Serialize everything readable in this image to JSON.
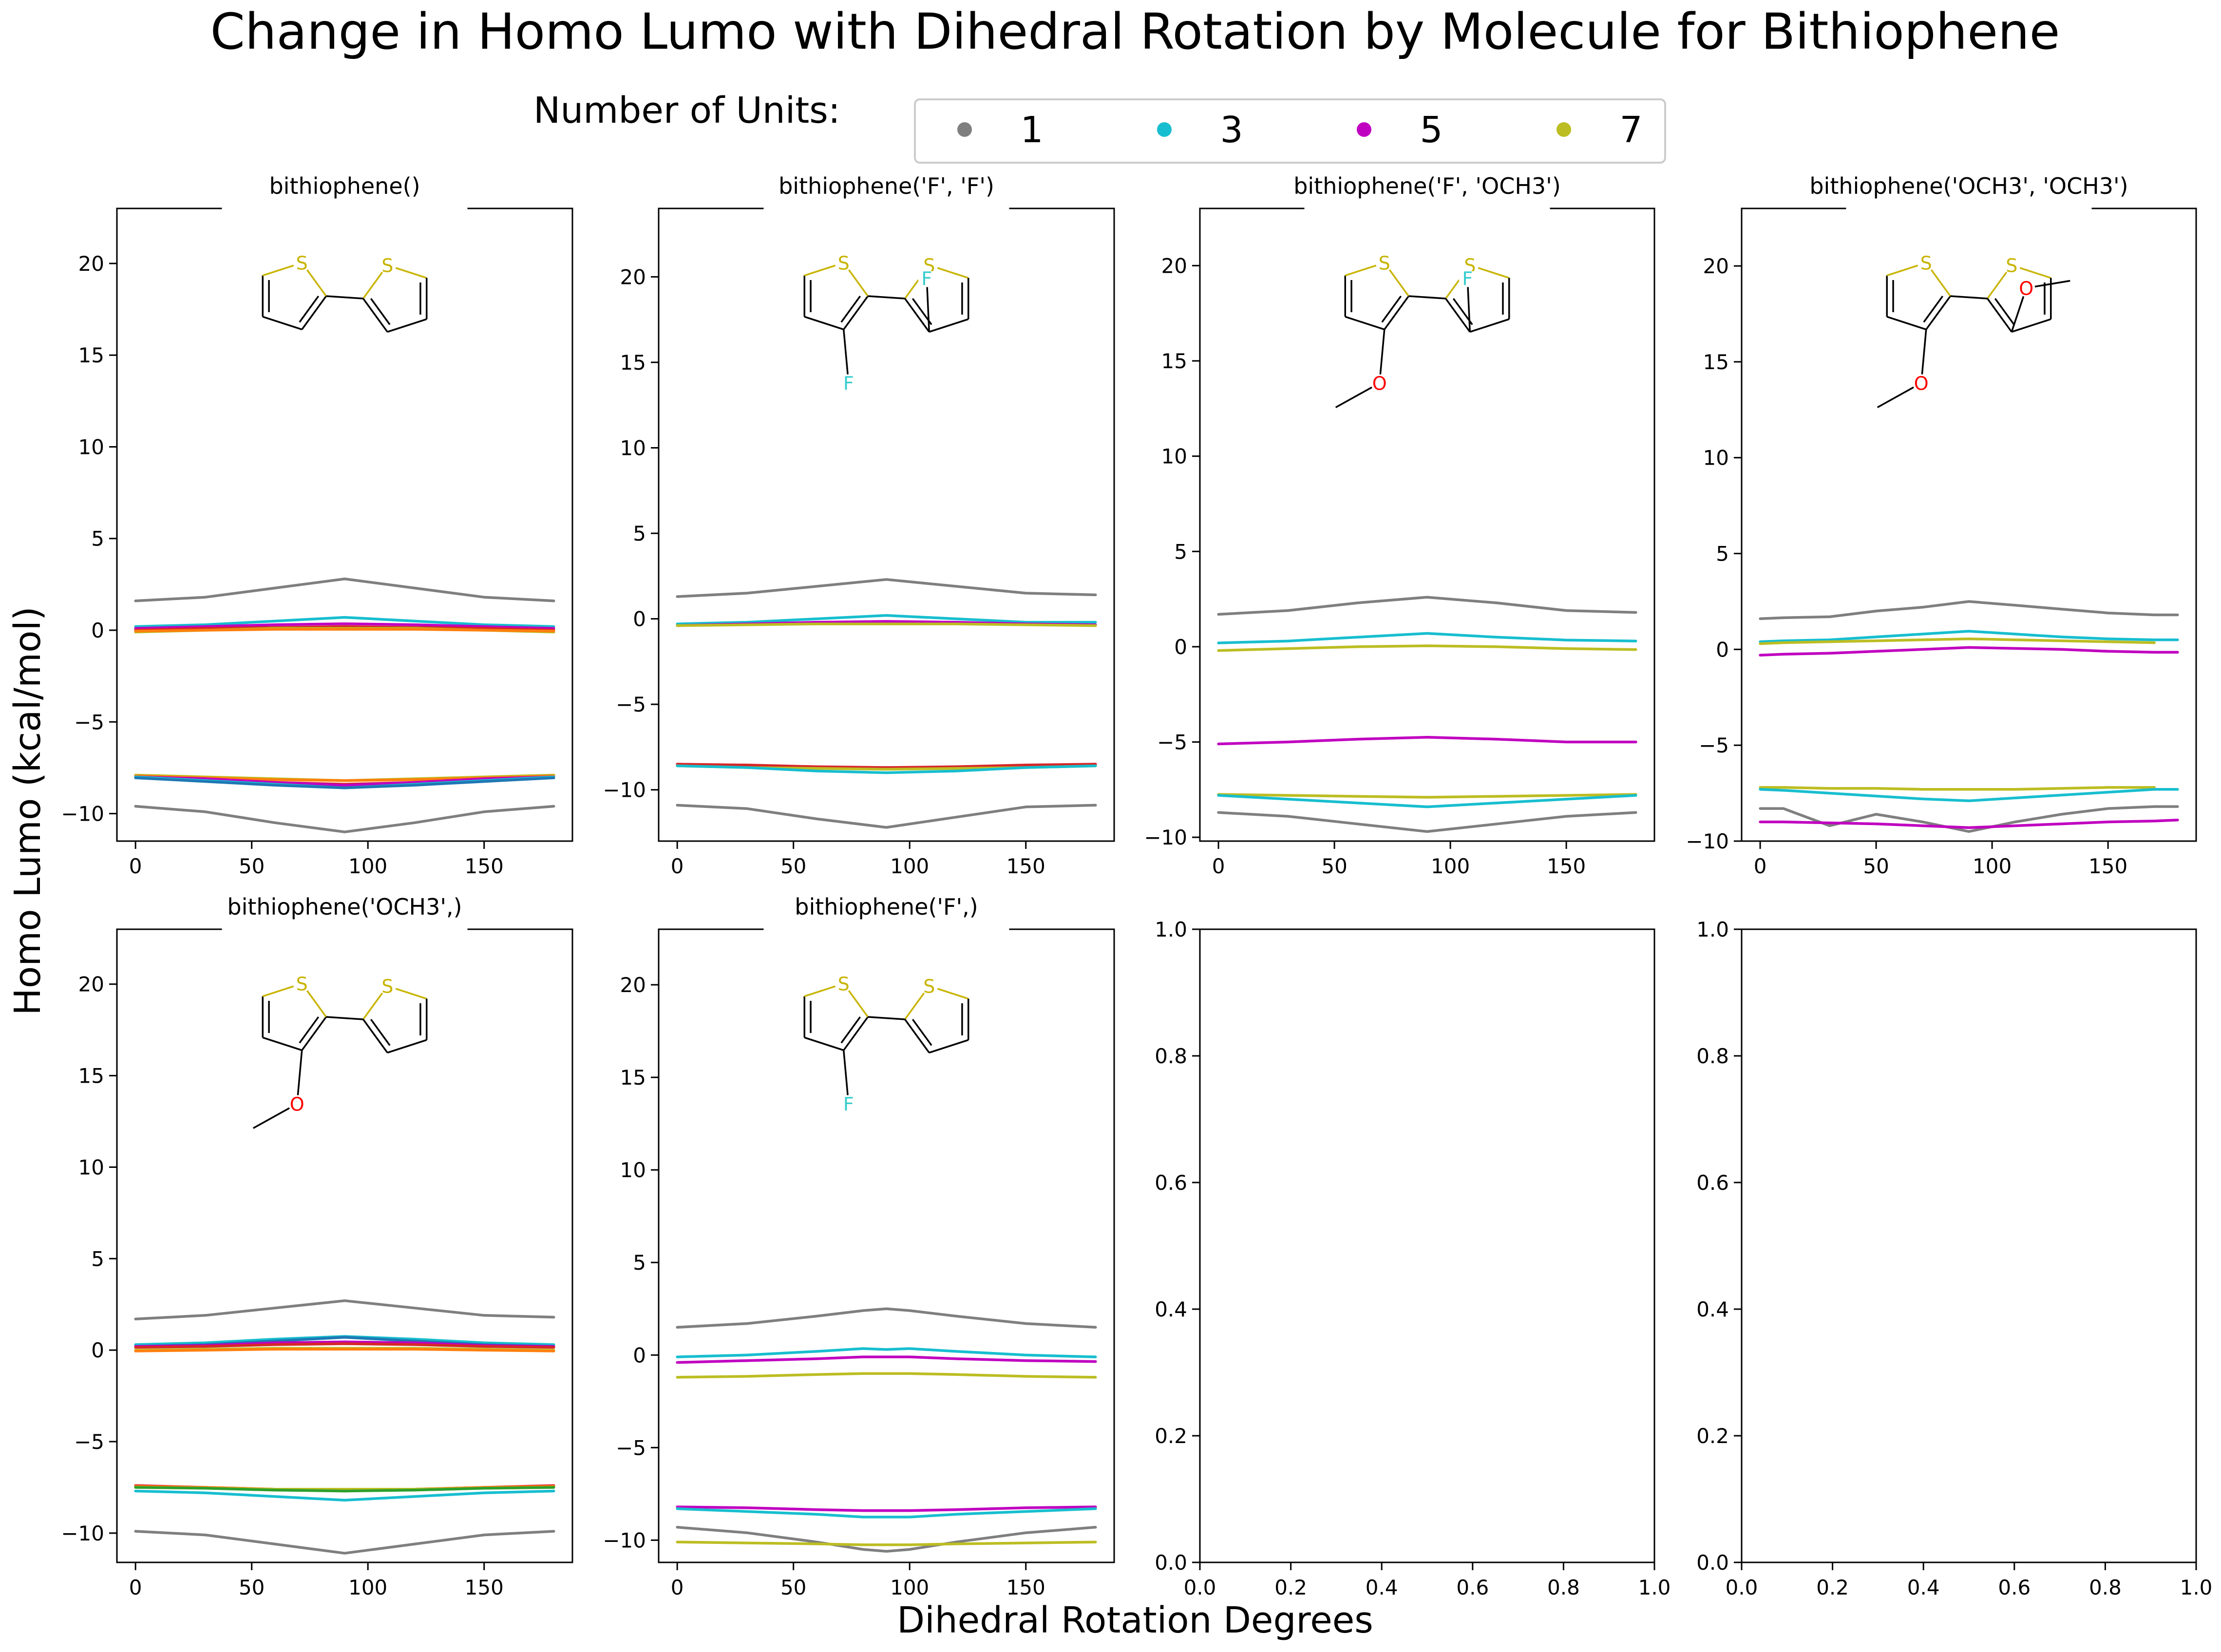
{
  "figure": {
    "title": "Change in Homo Lumo with Dihedral Rotation by Molecule for Bithiophene",
    "xlabel": "Dihedral Rotation Degrees",
    "ylabel": "Homo Lumo (kcal/mol)"
  },
  "legend": {
    "title": "Number of Units:",
    "entries": [
      {
        "label": "1",
        "color": "#7f7f7f"
      },
      {
        "label": "3",
        "color": "#17becf"
      },
      {
        "label": "5",
        "color": "#c000c0"
      },
      {
        "label": "7",
        "color": "#bcbd22"
      }
    ]
  },
  "colors": {
    "gray": "#7f7f7f",
    "cyan": "#17becf",
    "magenta": "#c000c0",
    "olive": "#bcbd22",
    "red": "#d62728",
    "orange": "#ff7f0e",
    "blue": "#1f77b4",
    "green": "#2ca02c",
    "sulfur": "#c8b400",
    "oxygen": "#ff0000",
    "fluorine": "#33cccc"
  },
  "chart_data": [
    {
      "type": "line",
      "title": "bithiophene()",
      "molecule": "base",
      "x": [
        0,
        30,
        60,
        90,
        120,
        150,
        180
      ],
      "xlim": [
        -8,
        188
      ],
      "ylim": [
        -11.5,
        23
      ],
      "xticks": [
        "0",
        "50",
        "100",
        "150"
      ],
      "yticks": [
        "−10",
        "−5",
        "0",
        "5",
        "10",
        "15",
        "20"
      ],
      "series": [
        {
          "color": "gray",
          "y": [
            1.6,
            1.8,
            2.3,
            2.8,
            2.3,
            1.8,
            1.6
          ]
        },
        {
          "color": "cyan",
          "y": [
            0.2,
            0.3,
            0.5,
            0.7,
            0.5,
            0.3,
            0.2
          ]
        },
        {
          "color": "magenta",
          "y": [
            0.1,
            0.2,
            0.3,
            0.35,
            0.3,
            0.2,
            0.1
          ]
        },
        {
          "color": "red",
          "y": [
            0.0,
            0.1,
            0.15,
            0.2,
            0.15,
            0.1,
            0.0
          ]
        },
        {
          "color": "olive",
          "y": [
            -0.1,
            0.0,
            0.1,
            0.1,
            0.1,
            0.0,
            -0.1
          ]
        },
        {
          "color": "orange",
          "y": [
            -0.05,
            0.0,
            0.05,
            0.05,
            0.05,
            0.0,
            -0.05
          ]
        },
        {
          "color": "olive",
          "y": [
            -7.9,
            -8.0,
            -8.1,
            -8.2,
            -8.1,
            -8.0,
            -7.9
          ]
        },
        {
          "color": "orange",
          "y": [
            -7.95,
            -8.05,
            -8.15,
            -8.2,
            -8.15,
            -8.05,
            -7.95
          ]
        },
        {
          "color": "red",
          "y": [
            -8.0,
            -8.1,
            -8.3,
            -8.4,
            -8.3,
            -8.1,
            -8.0
          ]
        },
        {
          "color": "magenta",
          "y": [
            -8.0,
            -8.1,
            -8.3,
            -8.45,
            -8.3,
            -8.1,
            -8.0
          ]
        },
        {
          "color": "cyan",
          "y": [
            -8.0,
            -8.2,
            -8.4,
            -8.6,
            -8.4,
            -8.2,
            -8.0
          ]
        },
        {
          "color": "blue",
          "y": [
            -8.05,
            -8.25,
            -8.45,
            -8.6,
            -8.45,
            -8.25,
            -8.05
          ]
        },
        {
          "color": "gray",
          "y": [
            -9.6,
            -9.9,
            -10.5,
            -11.0,
            -10.5,
            -9.9,
            -9.6
          ]
        }
      ]
    },
    {
      "type": "line",
      "title": "bithiophene('F', 'F')",
      "molecule": "FF",
      "x": [
        0,
        30,
        60,
        90,
        120,
        150,
        180
      ],
      "xlim": [
        -8,
        188
      ],
      "ylim": [
        -13,
        24
      ],
      "xticks": [
        "0",
        "50",
        "100",
        "150"
      ],
      "yticks": [
        "−10",
        "−5",
        "0",
        "5",
        "10",
        "15",
        "20"
      ],
      "series": [
        {
          "color": "gray",
          "y": [
            1.3,
            1.5,
            1.9,
            2.3,
            1.9,
            1.5,
            1.4
          ]
        },
        {
          "color": "cyan",
          "y": [
            -0.3,
            -0.2,
            0.0,
            0.2,
            0.0,
            -0.2,
            -0.2
          ]
        },
        {
          "color": "magenta",
          "y": [
            -0.4,
            -0.3,
            -0.2,
            -0.15,
            -0.2,
            -0.3,
            -0.35
          ]
        },
        {
          "color": "olive",
          "y": [
            -0.4,
            -0.35,
            -0.3,
            -0.3,
            -0.3,
            -0.35,
            -0.4
          ]
        },
        {
          "color": "magenta",
          "y": [
            -8.5,
            -8.6,
            -8.7,
            -8.7,
            -8.7,
            -8.6,
            -8.5
          ]
        },
        {
          "color": "red",
          "y": [
            -8.5,
            -8.55,
            -8.65,
            -8.7,
            -8.65,
            -8.55,
            -8.5
          ]
        },
        {
          "color": "olive",
          "y": [
            -8.6,
            -8.7,
            -8.75,
            -8.8,
            -8.75,
            -8.7,
            -8.6
          ]
        },
        {
          "color": "cyan",
          "y": [
            -8.6,
            -8.7,
            -8.9,
            -9.0,
            -8.9,
            -8.7,
            -8.6
          ]
        },
        {
          "color": "gray",
          "y": [
            -10.9,
            -11.1,
            -11.7,
            -12.2,
            -11.6,
            -11.0,
            -10.9
          ]
        }
      ]
    },
    {
      "type": "line",
      "title": "bithiophene('F', 'OCH3')",
      "molecule": "FOCH3",
      "x": [
        0,
        30,
        60,
        90,
        120,
        150,
        180
      ],
      "xlim": [
        -8,
        188
      ],
      "ylim": [
        -10.2,
        23
      ],
      "xticks": [
        "0",
        "50",
        "100",
        "150"
      ],
      "yticks": [
        "−10",
        "−5",
        "0",
        "5",
        "10",
        "15",
        "20"
      ],
      "series": [
        {
          "color": "gray",
          "y": [
            1.7,
            1.9,
            2.3,
            2.6,
            2.3,
            1.9,
            1.8
          ]
        },
        {
          "color": "cyan",
          "y": [
            0.2,
            0.3,
            0.5,
            0.7,
            0.5,
            0.35,
            0.3
          ]
        },
        {
          "color": "olive",
          "y": [
            -0.2,
            -0.1,
            0.0,
            0.05,
            0.0,
            -0.1,
            -0.15
          ]
        },
        {
          "color": "magenta",
          "y": [
            -5.1,
            -5.0,
            -4.85,
            -4.75,
            -4.85,
            -5.0,
            -5.0
          ]
        },
        {
          "color": "olive",
          "y": [
            -7.75,
            -7.8,
            -7.85,
            -7.9,
            -7.85,
            -7.8,
            -7.75
          ]
        },
        {
          "color": "cyan",
          "y": [
            -7.8,
            -8.0,
            -8.2,
            -8.4,
            -8.2,
            -8.0,
            -7.8
          ]
        },
        {
          "color": "gray",
          "y": [
            -8.7,
            -8.9,
            -9.3,
            -9.7,
            -9.3,
            -8.9,
            -8.7
          ]
        }
      ]
    },
    {
      "type": "line",
      "title": "bithiophene('OCH3', 'OCH3')",
      "molecule": "OCH3OCH3",
      "x": [
        0,
        10,
        30,
        50,
        70,
        90,
        110,
        130,
        150,
        170,
        180
      ],
      "xlim": [
        -8,
        188
      ],
      "ylim": [
        -10,
        23
      ],
      "xticks": [
        "0",
        "50",
        "100",
        "150"
      ],
      "yticks": [
        "−10",
        "−5",
        "0",
        "5",
        "10",
        "15",
        "20"
      ],
      "series": [
        {
          "color": "gray",
          "y": [
            1.6,
            1.65,
            1.7,
            2.0,
            2.2,
            2.5,
            2.3,
            2.1,
            1.9,
            1.8,
            1.8
          ]
        },
        {
          "color": "cyan",
          "y": [
            0.4,
            0.45,
            0.5,
            0.65,
            0.8,
            0.95,
            0.8,
            0.65,
            0.55,
            0.5,
            0.5
          ]
        },
        {
          "color": "olive",
          "y": [
            0.3,
            0.35,
            0.4,
            0.45,
            0.5,
            0.55,
            0.5,
            0.45,
            0.4,
            0.35,
            null
          ]
        },
        {
          "color": "magenta",
          "y": [
            -0.3,
            -0.25,
            -0.2,
            -0.1,
            0.0,
            0.1,
            0.05,
            0.0,
            -0.1,
            -0.15,
            -0.15
          ]
        },
        {
          "color": "olive",
          "y": [
            -7.2,
            -7.2,
            -7.25,
            -7.25,
            -7.3,
            -7.3,
            -7.3,
            -7.25,
            -7.2,
            -7.2,
            null
          ]
        },
        {
          "color": "cyan",
          "y": [
            -7.3,
            -7.35,
            -7.5,
            -7.65,
            -7.8,
            -7.9,
            -7.75,
            -7.6,
            -7.45,
            -7.3,
            -7.3
          ]
        },
        {
          "color": "gray",
          "y": [
            -8.3,
            -8.3,
            -9.2,
            -8.6,
            -9.0,
            -9.5,
            -9.0,
            -8.6,
            -8.3,
            -8.2,
            -8.2
          ]
        },
        {
          "color": "magenta",
          "y": [
            -9.0,
            -9.0,
            -9.05,
            -9.1,
            -9.2,
            -9.3,
            -9.2,
            -9.1,
            -9.0,
            -8.95,
            -8.9
          ]
        }
      ]
    },
    {
      "type": "line",
      "title": "bithiophene('OCH3',)",
      "molecule": "OCH3",
      "x": [
        0,
        30,
        60,
        90,
        120,
        150,
        180
      ],
      "xlim": [
        -8,
        188
      ],
      "ylim": [
        -11.6,
        23
      ],
      "xticks": [
        "0",
        "50",
        "100",
        "150"
      ],
      "yticks": [
        "−10",
        "−5",
        "0",
        "5",
        "10",
        "15",
        "20"
      ],
      "series": [
        {
          "color": "gray",
          "y": [
            1.7,
            1.9,
            2.3,
            2.7,
            2.3,
            1.9,
            1.8
          ]
        },
        {
          "color": "cyan",
          "y": [
            0.3,
            0.4,
            0.6,
            0.75,
            0.6,
            0.4,
            0.3
          ]
        },
        {
          "color": "blue",
          "y": [
            0.2,
            0.3,
            0.5,
            0.7,
            0.5,
            0.3,
            0.2
          ]
        },
        {
          "color": "magenta",
          "y": [
            0.2,
            0.25,
            0.4,
            0.45,
            0.4,
            0.25,
            0.2
          ]
        },
        {
          "color": "red",
          "y": [
            0.15,
            0.2,
            0.3,
            0.35,
            0.3,
            0.2,
            0.15
          ]
        },
        {
          "color": "olive",
          "y": [
            0.0,
            0.05,
            0.1,
            0.1,
            0.1,
            0.05,
            0.0
          ]
        },
        {
          "color": "orange",
          "y": [
            -0.05,
            0.0,
            0.05,
            0.05,
            0.05,
            0.0,
            -0.05
          ]
        },
        {
          "color": "red",
          "y": [
            -7.4,
            -7.5,
            -7.6,
            -7.7,
            -7.6,
            -7.5,
            -7.4
          ]
        },
        {
          "color": "orange",
          "y": [
            -7.45,
            -7.5,
            -7.6,
            -7.65,
            -7.6,
            -7.5,
            -7.45
          ]
        },
        {
          "color": "olive",
          "y": [
            -7.5,
            -7.55,
            -7.6,
            -7.6,
            -7.6,
            -7.55,
            -7.5
          ]
        },
        {
          "color": "green",
          "y": [
            -7.5,
            -7.55,
            -7.65,
            -7.7,
            -7.65,
            -7.55,
            -7.5
          ]
        },
        {
          "color": "cyan",
          "y": [
            -7.7,
            -7.8,
            -8.0,
            -8.2,
            -8.0,
            -7.8,
            -7.7
          ]
        },
        {
          "color": "gray",
          "y": [
            -9.9,
            -10.1,
            -10.6,
            -11.1,
            -10.6,
            -10.1,
            -9.9
          ]
        }
      ]
    },
    {
      "type": "line",
      "title": "bithiophene('F',)",
      "molecule": "F",
      "x": [
        0,
        30,
        60,
        80,
        90,
        100,
        120,
        150,
        180
      ],
      "xlim": [
        -8,
        188
      ],
      "ylim": [
        -11.2,
        23
      ],
      "xticks": [
        "0",
        "50",
        "100",
        "150"
      ],
      "yticks": [
        "−10",
        "−5",
        "0",
        "5",
        "10",
        "15",
        "20"
      ],
      "series": [
        {
          "color": "gray",
          "y": [
            1.5,
            1.7,
            2.1,
            2.4,
            2.5,
            2.4,
            2.1,
            1.7,
            1.5
          ]
        },
        {
          "color": "cyan",
          "y": [
            -0.1,
            0.0,
            0.2,
            0.35,
            0.3,
            0.35,
            0.2,
            0.0,
            -0.1
          ]
        },
        {
          "color": "magenta",
          "y": [
            -0.4,
            -0.3,
            -0.2,
            -0.1,
            -0.1,
            -0.1,
            -0.2,
            -0.3,
            -0.35
          ]
        },
        {
          "color": "olive",
          "y": [
            -1.2,
            -1.15,
            -1.05,
            -1.0,
            -1.0,
            -1.0,
            -1.05,
            -1.15,
            -1.2
          ]
        },
        {
          "color": "magenta",
          "y": [
            -8.2,
            -8.25,
            -8.35,
            -8.4,
            -8.4,
            -8.4,
            -8.35,
            -8.25,
            -8.2
          ]
        },
        {
          "color": "cyan",
          "y": [
            -8.3,
            -8.45,
            -8.6,
            -8.75,
            -8.75,
            -8.75,
            -8.6,
            -8.45,
            -8.3
          ]
        },
        {
          "color": "gray",
          "y": [
            -9.3,
            -9.6,
            -10.1,
            -10.5,
            -10.6,
            -10.5,
            -10.1,
            -9.6,
            -9.3
          ]
        },
        {
          "color": "olive",
          "y": [
            -10.1,
            -10.15,
            -10.2,
            -10.25,
            -10.25,
            -10.25,
            -10.2,
            -10.15,
            -10.1
          ]
        }
      ]
    },
    {
      "type": "line",
      "title": "",
      "x": [],
      "xlim": [
        0,
        1
      ],
      "ylim": [
        0,
        1
      ],
      "xticks": [
        "0.0",
        "0.2",
        "0.4",
        "0.6",
        "0.8",
        "1.0"
      ],
      "yticks": [
        "0.0",
        "0.2",
        "0.4",
        "0.6",
        "0.8",
        "1.0"
      ],
      "series": []
    },
    {
      "type": "line",
      "title": "",
      "x": [],
      "xlim": [
        0,
        1
      ],
      "ylim": [
        0,
        1
      ],
      "xticks": [
        "0.0",
        "0.2",
        "0.4",
        "0.6",
        "0.8",
        "1.0"
      ],
      "yticks": [
        "0.0",
        "0.2",
        "0.4",
        "0.6",
        "0.8",
        "1.0"
      ],
      "series": []
    }
  ]
}
